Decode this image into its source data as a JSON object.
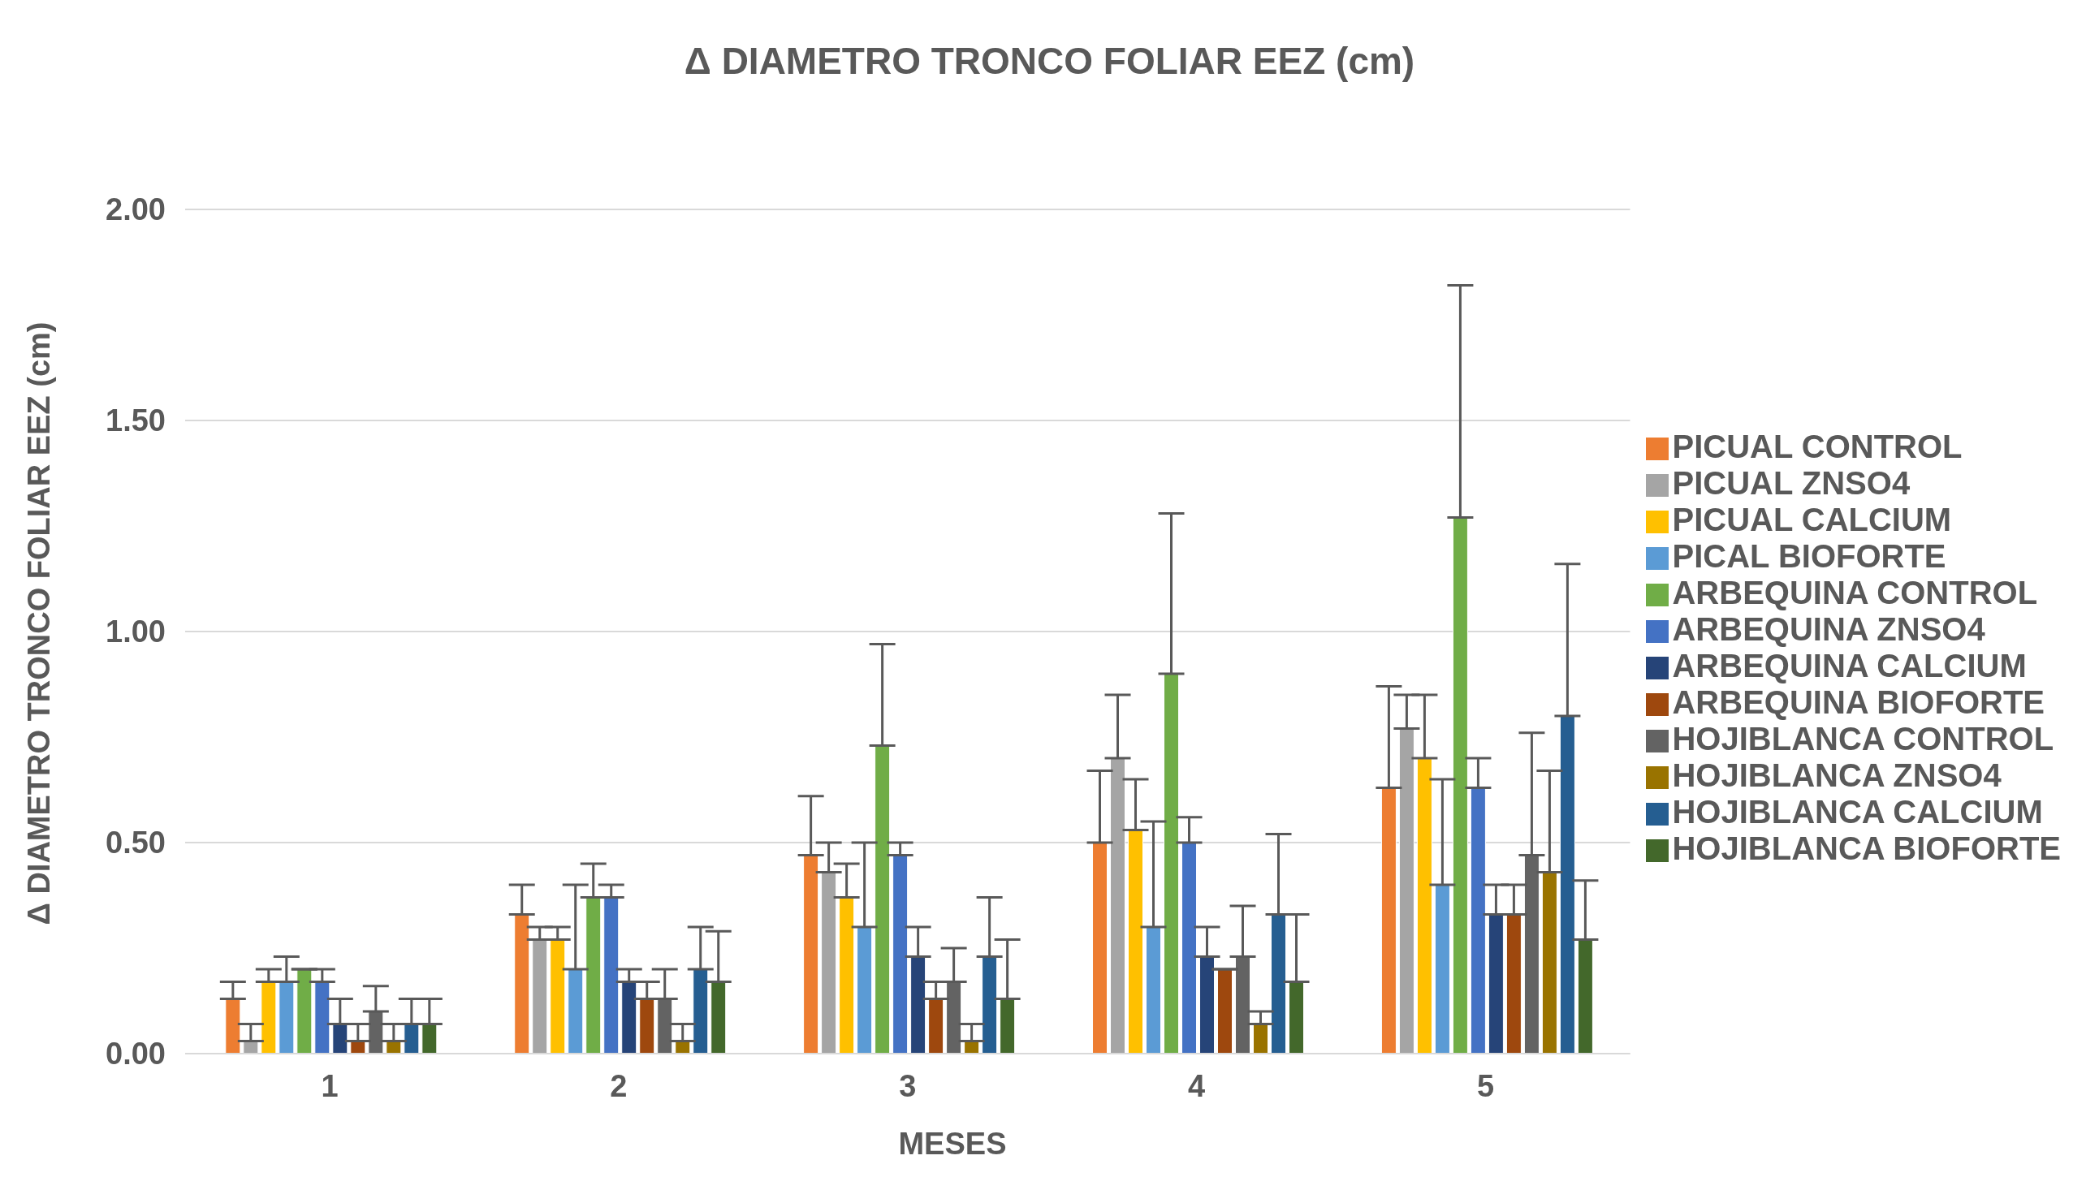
{
  "chart_data": {
    "type": "bar",
    "title": "Δ DIAMETRO TRONCO FOLIAR EEZ (cm)",
    "xlabel": "MESES",
    "ylabel": "Δ DIAMETRO TRONCO FOLIAR EEZ (cm)",
    "categories": [
      "1",
      "2",
      "3",
      "4",
      "5"
    ],
    "ylim": [
      0,
      2
    ],
    "yticks": [
      {
        "value": 0,
        "label": "0.00"
      },
      {
        "value": 0.5,
        "label": "0.50"
      },
      {
        "value": 1,
        "label": "1.00"
      },
      {
        "value": 1.5,
        "label": "1.50"
      },
      {
        "value": 2,
        "label": "2.00"
      }
    ],
    "grid": "y",
    "legend": "right",
    "series": [
      {
        "name": "PICUAL CONTROL",
        "color": "#ed7d31",
        "values": [
          0.13,
          0.33,
          0.47,
          0.5,
          0.63
        ],
        "errors": [
          [
            0.13,
            0.17
          ],
          [
            0.33,
            0.4
          ],
          [
            0.47,
            0.61
          ],
          [
            0.5,
            0.67
          ],
          [
            0.63,
            0.87
          ]
        ]
      },
      {
        "name": "PICUAL ZNSO4",
        "color": "#a5a5a5",
        "values": [
          0.03,
          0.27,
          0.43,
          0.7,
          0.77
        ],
        "errors": [
          [
            0.03,
            0.07
          ],
          [
            0.27,
            0.3
          ],
          [
            0.43,
            0.5
          ],
          [
            0.7,
            0.85
          ],
          [
            0.77,
            0.85
          ]
        ]
      },
      {
        "name": "PICUAL CALCIUM",
        "color": "#ffc000",
        "values": [
          0.17,
          0.27,
          0.37,
          0.53,
          0.7
        ],
        "errors": [
          [
            0.17,
            0.2
          ],
          [
            0.27,
            0.3
          ],
          [
            0.37,
            0.45
          ],
          [
            0.53,
            0.65
          ],
          [
            0.7,
            0.85
          ]
        ]
      },
      {
        "name": "PICAL BIOFORTE",
        "color": "#5b9bd5",
        "values": [
          0.17,
          0.2,
          0.3,
          0.3,
          0.4
        ],
        "errors": [
          [
            0.17,
            0.23
          ],
          [
            0.2,
            0.4
          ],
          [
            0.3,
            0.5
          ],
          [
            0.3,
            0.55
          ],
          [
            0.4,
            0.65
          ]
        ]
      },
      {
        "name": "ARBEQUINA CONTROL",
        "color": "#70ad47",
        "values": [
          0.2,
          0.37,
          0.73,
          0.9,
          1.27
        ],
        "errors": [
          [
            0.2,
            0.2
          ],
          [
            0.37,
            0.45
          ],
          [
            0.73,
            0.97
          ],
          [
            0.9,
            1.28
          ],
          [
            1.27,
            1.82
          ]
        ]
      },
      {
        "name": "ARBEQUINA ZNSO4",
        "color": "#4472c4",
        "values": [
          0.17,
          0.37,
          0.47,
          0.5,
          0.63
        ],
        "errors": [
          [
            0.17,
            0.2
          ],
          [
            0.37,
            0.4
          ],
          [
            0.47,
            0.5
          ],
          [
            0.5,
            0.56
          ],
          [
            0.63,
            0.7
          ]
        ]
      },
      {
        "name": "ARBEQUINA CALCIUM",
        "color": "#264478",
        "values": [
          0.07,
          0.17,
          0.23,
          0.23,
          0.33
        ],
        "errors": [
          [
            0.07,
            0.13
          ],
          [
            0.17,
            0.2
          ],
          [
            0.23,
            0.3
          ],
          [
            0.23,
            0.3
          ],
          [
            0.33,
            0.4
          ]
        ]
      },
      {
        "name": "ARBEQUINA BIOFORTE",
        "color": "#9e480e",
        "values": [
          0.03,
          0.13,
          0.13,
          0.2,
          0.33
        ],
        "errors": [
          [
            0.03,
            0.07
          ],
          [
            0.13,
            0.17
          ],
          [
            0.13,
            0.17
          ],
          [
            0.2,
            0.2
          ],
          [
            0.33,
            0.4
          ]
        ]
      },
      {
        "name": "HOJIBLANCA CONTROL",
        "color": "#636363",
        "values": [
          0.1,
          0.13,
          0.17,
          0.23,
          0.47
        ],
        "errors": [
          [
            0.1,
            0.16
          ],
          [
            0.13,
            0.2
          ],
          [
            0.17,
            0.25
          ],
          [
            0.23,
            0.35
          ],
          [
            0.47,
            0.76
          ]
        ]
      },
      {
        "name": "HOJIBLANCA ZNSO4",
        "color": "#997300",
        "values": [
          0.03,
          0.03,
          0.03,
          0.07,
          0.43
        ],
        "errors": [
          [
            0.03,
            0.07
          ],
          [
            0.03,
            0.07
          ],
          [
            0.03,
            0.07
          ],
          [
            0.07,
            0.1
          ],
          [
            0.43,
            0.67
          ]
        ]
      },
      {
        "name": "HOJIBLANCA CALCIUM",
        "color": "#255e91",
        "values": [
          0.07,
          0.2,
          0.23,
          0.33,
          0.8
        ],
        "errors": [
          [
            0.07,
            0.13
          ],
          [
            0.2,
            0.3
          ],
          [
            0.23,
            0.37
          ],
          [
            0.33,
            0.52
          ],
          [
            0.8,
            1.16
          ]
        ]
      },
      {
        "name": "HOJIBLANCA BIOFORTE",
        "color": "#43682b",
        "values": [
          0.07,
          0.17,
          0.13,
          0.17,
          0.27
        ],
        "errors": [
          [
            0.07,
            0.13
          ],
          [
            0.17,
            0.29
          ],
          [
            0.13,
            0.27
          ],
          [
            0.17,
            0.33
          ],
          [
            0.27,
            0.41
          ]
        ]
      }
    ]
  }
}
